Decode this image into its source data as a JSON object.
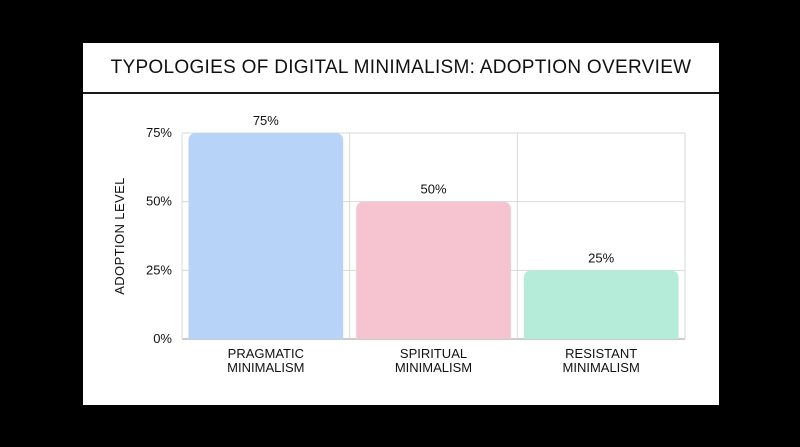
{
  "title": "TYPOLOGIES OF DIGITAL MINIMALISM: ADOPTION OVERVIEW",
  "chart_data": {
    "type": "bar",
    "title": "TYPOLOGIES OF DIGITAL MINIMALISM: ADOPTION OVERVIEW",
    "xlabel": "",
    "ylabel": "ADOPTION LEVEL",
    "ylim": [
      0,
      75
    ],
    "yticks": [
      0,
      25,
      50,
      75
    ],
    "ytick_labels": [
      "0%",
      "25%",
      "50%",
      "75%"
    ],
    "grid": true,
    "categories": [
      [
        "PRAGMATIC",
        "MINIMALISM"
      ],
      [
        "SPIRITUAL",
        "MINIMALISM"
      ],
      [
        "RESISTANT",
        "MINIMALISM"
      ]
    ],
    "values": [
      75,
      50,
      25
    ],
    "data_labels": [
      "75%",
      "50%",
      "25%"
    ],
    "colors": [
      "#b7d3f7",
      "#f6c3d1",
      "#b4ecd9"
    ]
  }
}
